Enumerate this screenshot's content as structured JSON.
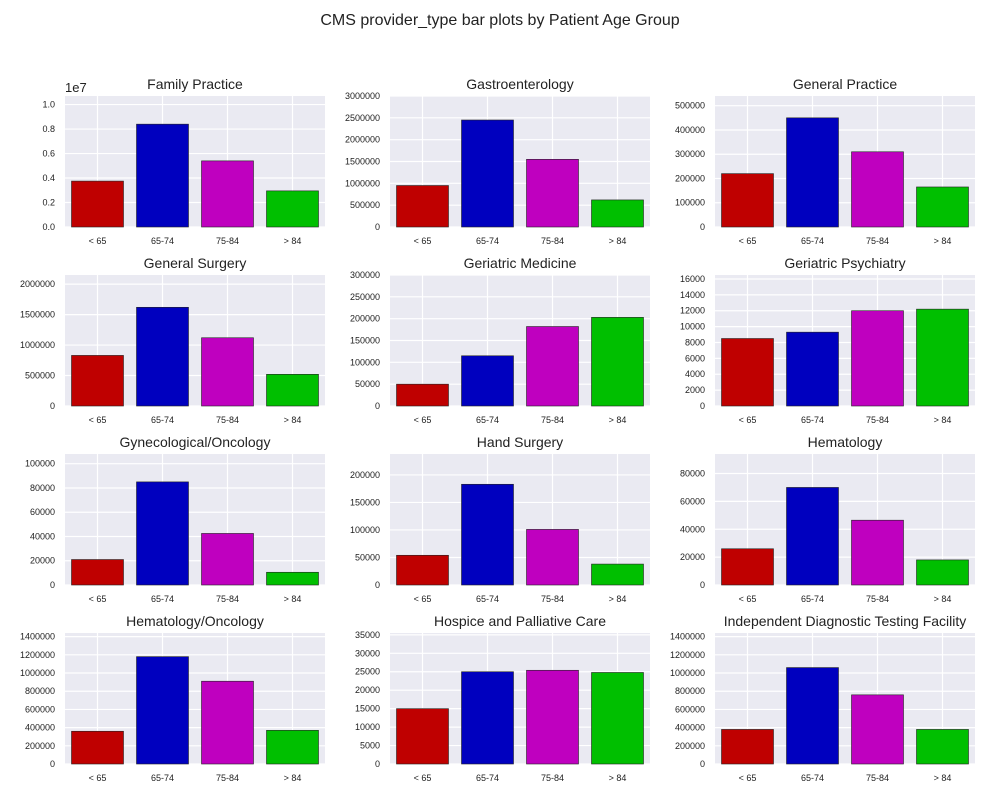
{
  "title": "CMS provider_type bar plots by Patient Age Group",
  "colors": [
    "#bf0000",
    "#0000bf",
    "#bf00bf",
    "#00bf00"
  ],
  "chart_data": [
    {
      "type": "bar",
      "title": "Family Practice",
      "categories": [
        "< 65",
        "65-74",
        "75-84",
        "> 84"
      ],
      "values": [
        3750000,
        8400000,
        5400000,
        2950000
      ],
      "ylim": [
        0,
        10700000
      ],
      "yticks": [
        0,
        2000000,
        4000000,
        6000000,
        8000000,
        10000000
      ],
      "ytick_labels": [
        "0.0",
        "0.2",
        "0.4",
        "0.6",
        "0.8",
        "1.0"
      ],
      "offset_text": "1e7"
    },
    {
      "type": "bar",
      "title": "Gastroenterology",
      "categories": [
        "< 65",
        "65-74",
        "75-84",
        "> 84"
      ],
      "values": [
        950000,
        2450000,
        1550000,
        620000
      ],
      "ylim": [
        0,
        3000000
      ],
      "yticks": [
        0,
        500000,
        1000000,
        1500000,
        2000000,
        2500000,
        3000000
      ],
      "ytick_labels": [
        "0",
        "500000",
        "1000000",
        "1500000",
        "2000000",
        "2500000",
        "3000000"
      ]
    },
    {
      "type": "bar",
      "title": "General Practice",
      "categories": [
        "< 65",
        "65-74",
        "75-84",
        "> 84"
      ],
      "values": [
        220000,
        450000,
        310000,
        165000
      ],
      "ylim": [
        0,
        540000
      ],
      "yticks": [
        0,
        100000,
        200000,
        300000,
        400000,
        500000
      ],
      "ytick_labels": [
        "0",
        "100000",
        "200000",
        "300000",
        "400000",
        "500000"
      ]
    },
    {
      "type": "bar",
      "title": "General Surgery",
      "categories": [
        "< 65",
        "65-74",
        "75-84",
        "> 84"
      ],
      "values": [
        830000,
        1620000,
        1120000,
        520000
      ],
      "ylim": [
        0,
        2150000
      ],
      "yticks": [
        0,
        500000,
        1000000,
        1500000,
        2000000
      ],
      "ytick_labels": [
        "0",
        "500000",
        "1000000",
        "1500000",
        "2000000"
      ]
    },
    {
      "type": "bar",
      "title": "Geriatric Medicine",
      "categories": [
        "< 65",
        "65-74",
        "75-84",
        "> 84"
      ],
      "values": [
        50000,
        115000,
        182000,
        203000
      ],
      "ylim": [
        0,
        300000
      ],
      "yticks": [
        0,
        50000,
        100000,
        150000,
        200000,
        250000,
        300000
      ],
      "ytick_labels": [
        "0",
        "50000",
        "100000",
        "150000",
        "200000",
        "250000",
        "300000"
      ]
    },
    {
      "type": "bar",
      "title": "Geriatric Psychiatry",
      "categories": [
        "< 65",
        "65-74",
        "75-84",
        "> 84"
      ],
      "values": [
        8500,
        9300,
        12000,
        12200
      ],
      "ylim": [
        0,
        16500
      ],
      "yticks": [
        0,
        2000,
        4000,
        6000,
        8000,
        10000,
        12000,
        14000,
        16000
      ],
      "ytick_labels": [
        "0",
        "2000",
        "4000",
        "6000",
        "8000",
        "10000",
        "12000",
        "14000",
        "16000"
      ]
    },
    {
      "type": "bar",
      "title": "Gynecological/Oncology",
      "categories": [
        "< 65",
        "65-74",
        "75-84",
        "> 84"
      ],
      "values": [
        21000,
        85000,
        42500,
        10500
      ],
      "ylim": [
        0,
        108000
      ],
      "yticks": [
        0,
        20000,
        40000,
        60000,
        80000,
        100000
      ],
      "ytick_labels": [
        "0",
        "20000",
        "40000",
        "60000",
        "80000",
        "100000"
      ]
    },
    {
      "type": "bar",
      "title": "Hand Surgery",
      "categories": [
        "< 65",
        "65-74",
        "75-84",
        "> 84"
      ],
      "values": [
        54000,
        183000,
        101000,
        38000
      ],
      "ylim": [
        0,
        238000
      ],
      "yticks": [
        0,
        50000,
        100000,
        150000,
        200000
      ],
      "ytick_labels": [
        "0",
        "50000",
        "100000",
        "150000",
        "200000"
      ]
    },
    {
      "type": "bar",
      "title": "Hematology",
      "categories": [
        "< 65",
        "65-74",
        "75-84",
        "> 84"
      ],
      "values": [
        26000,
        70000,
        46500,
        18000
      ],
      "ylim": [
        0,
        94000
      ],
      "yticks": [
        0,
        20000,
        40000,
        60000,
        80000
      ],
      "ytick_labels": [
        "0",
        "20000",
        "40000",
        "60000",
        "80000"
      ]
    },
    {
      "type": "bar",
      "title": "Hematology/Oncology",
      "categories": [
        "< 65",
        "65-74",
        "75-84",
        "> 84"
      ],
      "values": [
        360000,
        1180000,
        910000,
        370000
      ],
      "ylim": [
        0,
        1440000
      ],
      "yticks": [
        0,
        200000,
        400000,
        600000,
        800000,
        1000000,
        1200000,
        1400000
      ],
      "ytick_labels": [
        "0",
        "200000",
        "400000",
        "600000",
        "800000",
        "1000000",
        "1200000",
        "1400000"
      ]
    },
    {
      "type": "bar",
      "title": "Hospice and Palliative Care",
      "categories": [
        "< 65",
        "65-74",
        "75-84",
        "> 84"
      ],
      "values": [
        15000,
        25000,
        25400,
        24800
      ],
      "ylim": [
        0,
        35500
      ],
      "yticks": [
        0,
        5000,
        10000,
        15000,
        20000,
        25000,
        30000,
        35000
      ],
      "ytick_labels": [
        "0",
        "5000",
        "10000",
        "15000",
        "20000",
        "25000",
        "30000",
        "35000"
      ]
    },
    {
      "type": "bar",
      "title": "Independent Diagnostic Testing Facility",
      "categories": [
        "< 65",
        "65-74",
        "75-84",
        "> 84"
      ],
      "values": [
        380000,
        1060000,
        760000,
        380000
      ],
      "ylim": [
        0,
        1440000
      ],
      "yticks": [
        0,
        200000,
        400000,
        600000,
        800000,
        1000000,
        1200000,
        1400000
      ],
      "ytick_labels": [
        "0",
        "200000",
        "400000",
        "600000",
        "800000",
        "1000000",
        "1200000",
        "1400000"
      ]
    }
  ]
}
